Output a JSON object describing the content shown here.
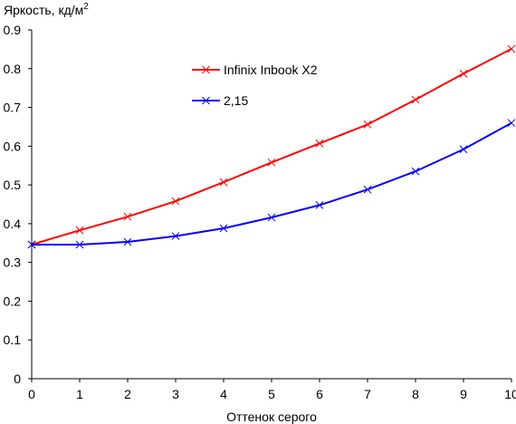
{
  "chart_data": {
    "type": "line",
    "title": "",
    "ylabel": "Яркость, кд/м",
    "ylabel_sup": "2",
    "xlabel": "Оттенок серого",
    "x": [
      0,
      1,
      2,
      3,
      4,
      5,
      6,
      7,
      8,
      9,
      10
    ],
    "xlim": [
      0,
      10
    ],
    "ylim": [
      0,
      0.9
    ],
    "x_ticks": [
      "0",
      "1",
      "2",
      "3",
      "4",
      "5",
      "6",
      "7",
      "8",
      "9",
      "10"
    ],
    "y_ticks": [
      "0",
      "0.1",
      "0.2",
      "0.3",
      "0.4",
      "0.5",
      "0.6",
      "0.7",
      "0.8",
      "0.9"
    ],
    "grid": false,
    "legend_position": "top-center",
    "marker": "x",
    "series": [
      {
        "name": "Infinix Inbook X2",
        "color": "#ff0000",
        "values": [
          0.346,
          0.383,
          0.418,
          0.458,
          0.507,
          0.558,
          0.607,
          0.656,
          0.72,
          0.787,
          0.851
        ]
      },
      {
        "name": "2,15",
        "color": "#0000ff",
        "values": [
          0.346,
          0.346,
          0.353,
          0.368,
          0.388,
          0.416,
          0.448,
          0.488,
          0.535,
          0.592,
          0.66
        ]
      }
    ]
  }
}
